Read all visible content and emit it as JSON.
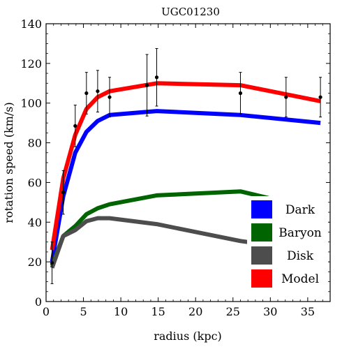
{
  "chart_data": {
    "type": "line",
    "title": "UGC01230",
    "xlabel": "radius (kpc)",
    "ylabel": "rotation speed (km/s)",
    "xlim": [
      0,
      38
    ],
    "ylim": [
      0,
      140
    ],
    "xticks": [
      0,
      5,
      10,
      15,
      20,
      25,
      30,
      35
    ],
    "yticks": [
      0,
      20,
      40,
      60,
      80,
      100,
      120,
      140
    ],
    "grid": false,
    "legend_position": "bottom-right",
    "series": [
      {
        "name": "Dark",
        "color": "#0000ff",
        "x": [
          0.8,
          2.3,
          3.9,
          5.4,
          6.9,
          8.5,
          14.8,
          26.0,
          36.7
        ],
        "y": [
          20,
          53,
          75,
          85.5,
          91,
          94,
          96,
          94,
          90
        ]
      },
      {
        "name": "Baryon",
        "color": "#006400",
        "x": [
          0.8,
          2.3,
          3.9,
          5.4,
          6.9,
          8.5,
          14.8,
          26.0,
          36.7
        ],
        "y": [
          18,
          33,
          38,
          44,
          47,
          49,
          53.5,
          55.5,
          46
        ]
      },
      {
        "name": "Disk",
        "color": "#4d4d4d",
        "x": [
          0.8,
          2.3,
          3.9,
          5.4,
          6.9,
          8.5,
          14.8,
          26.0,
          36.7
        ],
        "y": [
          17,
          33,
          36,
          40.5,
          42,
          42,
          39,
          30.5,
          25
        ]
      },
      {
        "name": "Model",
        "color": "#ff0000",
        "x": [
          0.8,
          2.3,
          3.9,
          5.4,
          6.9,
          8.5,
          14.8,
          26.0,
          36.7
        ],
        "y": [
          26,
          62,
          84,
          97,
          103,
          106,
          110,
          109,
          101
        ]
      }
    ],
    "observations": {
      "x": [
        0.8,
        2.3,
        3.9,
        5.4,
        6.9,
        8.5,
        13.5,
        14.8,
        26.0,
        32.1,
        36.7
      ],
      "y": [
        19.5,
        55,
        88.5,
        105,
        106,
        103,
        109,
        113,
        105,
        103,
        103
      ],
      "err": [
        10.5,
        11,
        10.5,
        10.5,
        10.5,
        10,
        15.5,
        14.5,
        10.5,
        10,
        10
      ]
    }
  }
}
